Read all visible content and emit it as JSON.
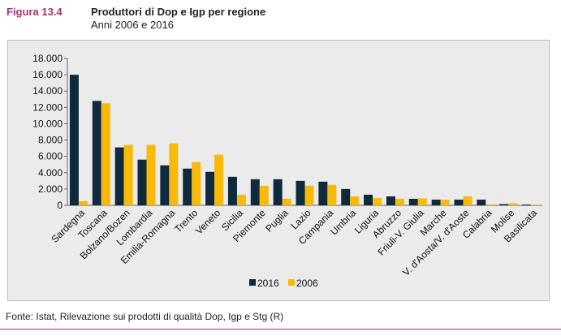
{
  "header": {
    "figure_label": "Figura 13.4",
    "title": "Produttori di Dop e Igp per regione",
    "subtitle": "Anni 2006 e 2016"
  },
  "footer": {
    "source": "Fonte: Istat, Rilevazione sui prodotti di qualità Dop, Igp e Stg (R)"
  },
  "colors": {
    "accent": "#a8336b",
    "series_2016": "#0e2a3c",
    "series_2006": "#f8b908",
    "chart_background": "#ebebeb"
  },
  "chart_data": {
    "type": "bar",
    "title": "",
    "xlabel": "",
    "ylabel": "",
    "ylim": [
      0,
      18000
    ],
    "yticks": [
      0,
      2000,
      4000,
      6000,
      8000,
      10000,
      12000,
      14000,
      16000,
      18000
    ],
    "ytick_labels": [
      "0",
      "2.000",
      "4.000",
      "6.000",
      "8.000",
      "10.000",
      "12.000",
      "14.000",
      "16.000",
      "18.000"
    ],
    "grid": false,
    "legend_position": "bottom-center",
    "categories": [
      "Sardegna",
      "Toscana",
      "Bolzano/Bozen",
      "Lombardia",
      "Emilia-Romagna",
      "Trento",
      "Veneto",
      "Sicilia",
      "Piemonte",
      "Puglia",
      "Lazio",
      "Campania",
      "Umbria",
      "Liguria",
      "Abruzzo",
      "Friuli-V. Giulia",
      "Marche",
      "V. d'Aosta/V. d'Aoste",
      "Calabria",
      "Molise",
      "Basilicata"
    ],
    "series": [
      {
        "name": "2016",
        "values": [
          16000,
          12800,
          7100,
          5600,
          4900,
          4500,
          4100,
          3500,
          3200,
          3200,
          3000,
          2900,
          2000,
          1300,
          1100,
          800,
          700,
          700,
          700,
          150,
          100
        ]
      },
      {
        "name": "2006",
        "values": [
          500,
          12500,
          7400,
          7400,
          7600,
          5300,
          6200,
          1300,
          2400,
          800,
          2400,
          2500,
          1100,
          900,
          800,
          850,
          700,
          1100,
          100,
          250,
          80
        ]
      }
    ]
  }
}
